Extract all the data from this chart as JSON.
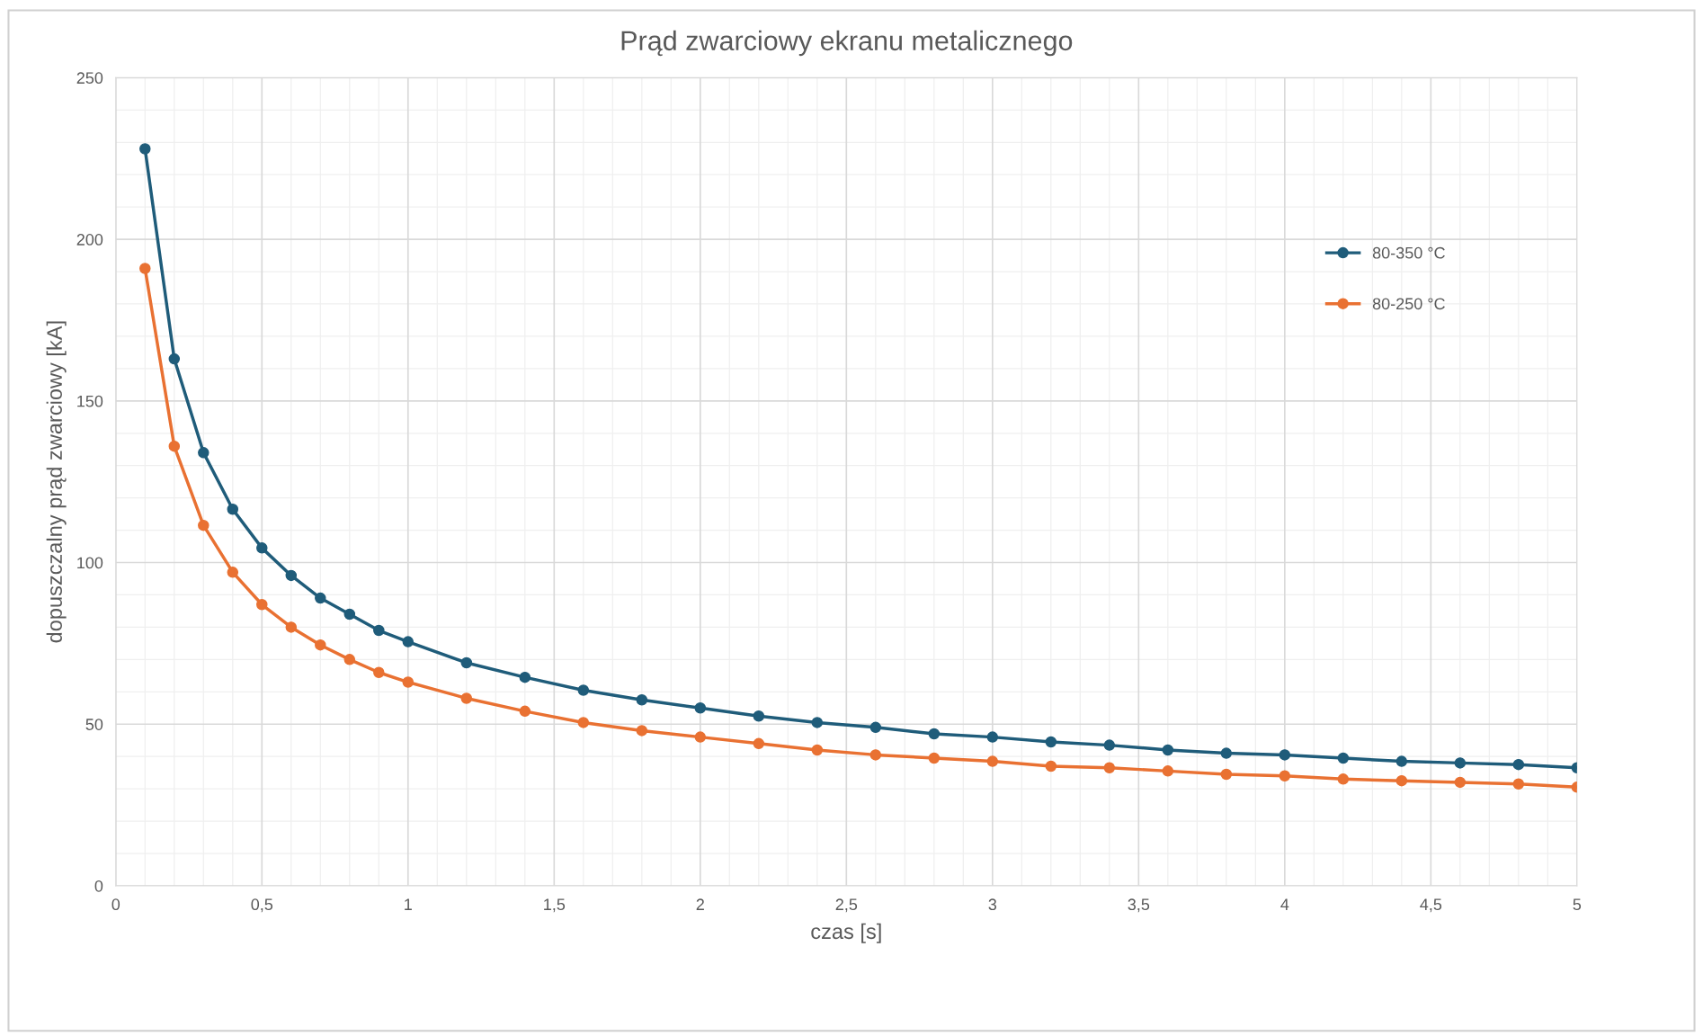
{
  "chart_data": {
    "type": "line",
    "title": "Prąd zwarciowy ekranu metalicznego",
    "xlabel": "czas [s]",
    "ylabel": "dopuszczalny prąd zwarciowy [kA]",
    "x": [
      0.1,
      0.2,
      0.3,
      0.4,
      0.5,
      0.6,
      0.7,
      0.8,
      0.9,
      1,
      1.2,
      1.4,
      1.6,
      1.8,
      2,
      2.2,
      2.4,
      2.6,
      2.8,
      3,
      3.2,
      3.4,
      3.6,
      3.8,
      4,
      4.2,
      4.4,
      4.6,
      4.8,
      5
    ],
    "series": [
      {
        "name": "80-350 °C",
        "color": "#1f5c7a",
        "values": [
          228,
          163,
          134,
          116.5,
          104.5,
          96,
          89,
          84,
          79,
          75.5,
          69,
          64.5,
          60.5,
          57.5,
          55,
          52.5,
          50.5,
          49,
          47,
          46,
          44.5,
          43.5,
          42,
          41,
          40.5,
          39.5,
          38.5,
          38,
          37.5,
          36.5
        ]
      },
      {
        "name": "80-250 °C",
        "color": "#e97132",
        "values": [
          191,
          136,
          111.5,
          97,
          87,
          80,
          74.5,
          70,
          66,
          63,
          58,
          54,
          50.5,
          48,
          46,
          44,
          42,
          40.5,
          39.5,
          38.5,
          37,
          36.5,
          35.5,
          34.5,
          34,
          33,
          32.5,
          32,
          31.5,
          30.5
        ]
      }
    ],
    "xlim": [
      0,
      5
    ],
    "ylim": [
      0,
      250
    ],
    "xticks": [
      0,
      {
        "value": 0.1,
        "label": null
      },
      {
        "value": 0.2,
        "label": null
      },
      {
        "value": 0.3,
        "label": null
      },
      {
        "value": 0.4,
        "label": null
      },
      {
        "value": 0.5,
        "label": "0,5"
      },
      {
        "value": 0.6,
        "label": null
      },
      {
        "value": 0.7,
        "label": null
      },
      {
        "value": 0.8,
        "label": null
      },
      {
        "value": 0.9,
        "label": null
      },
      1,
      {
        "value": 1.1,
        "label": null
      },
      {
        "value": 1.2,
        "label": null
      },
      {
        "value": 1.3,
        "label": null
      },
      {
        "value": 1.4,
        "label": null
      },
      {
        "value": 1.5,
        "label": "1,5"
      },
      {
        "value": 1.6,
        "label": null
      },
      {
        "value": 1.7,
        "label": null
      },
      {
        "value": 1.8,
        "label": null
      },
      {
        "value": 1.9,
        "label": null
      },
      2,
      {
        "value": 2.1,
        "label": null
      },
      {
        "value": 2.2,
        "label": null
      },
      {
        "value": 2.3,
        "label": null
      },
      {
        "value": 2.4,
        "label": null
      },
      {
        "value": 2.5,
        "label": "2,5"
      },
      {
        "value": 2.6,
        "label": null
      },
      {
        "value": 2.7,
        "label": null
      },
      {
        "value": 2.8,
        "label": null
      },
      {
        "value": 2.9,
        "label": null
      },
      3,
      {
        "value": 3.1,
        "label": null
      },
      {
        "value": 3.2,
        "label": null
      },
      {
        "value": 3.3,
        "label": null
      },
      {
        "value": 3.4,
        "label": null
      },
      {
        "value": 3.5,
        "label": "3,5"
      },
      {
        "value": 3.6,
        "label": null
      },
      {
        "value": 3.7,
        "label": null
      },
      {
        "value": 3.8,
        "label": null
      },
      {
        "value": 3.9,
        "label": null
      },
      4,
      {
        "value": 4.1,
        "label": null
      },
      {
        "value": 4.2,
        "label": null
      },
      {
        "value": 4.3,
        "label": null
      },
      {
        "value": 4.4,
        "label": null
      },
      {
        "value": 4.5,
        "label": "4,5"
      },
      {
        "value": 4.6,
        "label": null
      },
      {
        "value": 4.7,
        "label": null
      },
      {
        "value": 4.8,
        "label": null
      },
      {
        "value": 4.9,
        "label": null
      },
      5
    ],
    "yticks": [
      0,
      {
        "value": 10,
        "label": null
      },
      {
        "value": 20,
        "label": null
      },
      {
        "value": 30,
        "label": null
      },
      {
        "value": 40,
        "label": null
      },
      50,
      {
        "value": 60,
        "label": null
      },
      {
        "value": 70,
        "label": null
      },
      {
        "value": 80,
        "label": null
      },
      {
        "value": 90,
        "label": null
      },
      100,
      {
        "value": 110,
        "label": null
      },
      {
        "value": 120,
        "label": null
      },
      {
        "value": 130,
        "label": null
      },
      {
        "value": 140,
        "label": null
      },
      150,
      {
        "value": 160,
        "label": null
      },
      {
        "value": 170,
        "label": null
      },
      {
        "value": 180,
        "label": null
      },
      {
        "value": 190,
        "label": null
      },
      200,
      {
        "value": 210,
        "label": null
      },
      {
        "value": 220,
        "label": null
      },
      {
        "value": 230,
        "label": null
      },
      {
        "value": 240,
        "label": null
      },
      250
    ],
    "grid": true,
    "legend": "right",
    "marker": "circle",
    "line_style": "solid"
  }
}
